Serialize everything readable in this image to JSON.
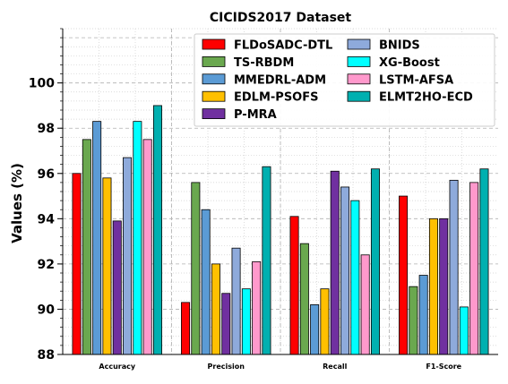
{
  "chart_data": {
    "type": "bar",
    "title": "CICIDS2017 Dataset",
    "xlabel": "",
    "ylabel": "Values (%)",
    "ylim": [
      88,
      102.4
    ],
    "yticks": [
      88,
      90,
      92,
      94,
      96,
      98,
      100
    ],
    "grid": true,
    "legend_position": "top-right",
    "categories": [
      "Accuracy",
      "Precision",
      "Recall",
      "F1-Score"
    ],
    "series": [
      {
        "name": "FLDoSADC-DTL",
        "color": "#ff0000",
        "values": [
          96.0,
          90.3,
          94.1,
          95.0
        ]
      },
      {
        "name": "TS-RBDM",
        "color": "#6aa84f",
        "values": [
          97.5,
          95.6,
          92.9,
          91.0
        ]
      },
      {
        "name": "MMEDRL-ADM",
        "color": "#5b9bd5",
        "values": [
          98.3,
          94.4,
          90.2,
          91.5
        ]
      },
      {
        "name": "EDLM-PSOFS",
        "color": "#ffc000",
        "values": [
          95.8,
          92.0,
          90.9,
          94.0
        ]
      },
      {
        "name": "P-MRA",
        "color": "#7030a0",
        "values": [
          93.9,
          90.7,
          96.1,
          94.0
        ]
      },
      {
        "name": "BNIDS",
        "color": "#8eaadb",
        "values": [
          96.7,
          92.7,
          95.4,
          95.7
        ]
      },
      {
        "name": "XG-Boost",
        "color": "#00ffff",
        "values": [
          98.3,
          90.9,
          94.8,
          90.1
        ]
      },
      {
        "name": "LSTM-AFSA",
        "color": "#ff99cc",
        "values": [
          97.5,
          92.1,
          92.4,
          95.6
        ]
      },
      {
        "name": "ELMT2HO-ECD",
        "color": "#00b0b0",
        "values": [
          99.0,
          96.3,
          96.2,
          96.2
        ]
      }
    ]
  }
}
